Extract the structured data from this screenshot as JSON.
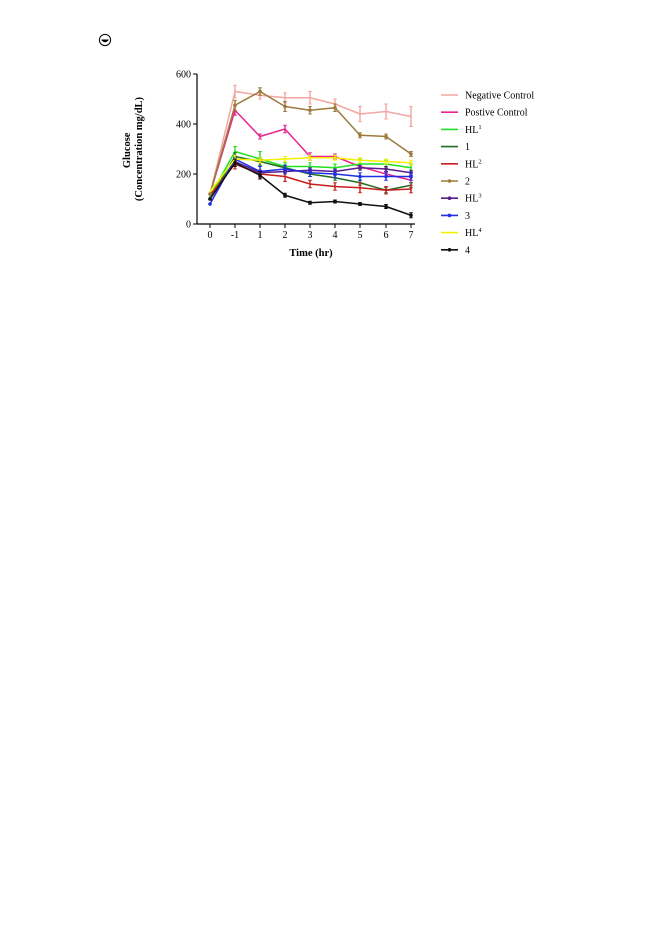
{
  "page": {
    "icon": "circled-dot-icon"
  },
  "chart_data": {
    "type": "line",
    "title": "",
    "xlabel": "Time (hr)",
    "ylabel_lines": [
      "Glucose",
      "(Concentration mg/dL)"
    ],
    "categories": [
      "0",
      "-1",
      "1",
      "2",
      "3",
      "4",
      "5",
      "6",
      "7"
    ],
    "ylim": [
      0,
      600
    ],
    "yticks": [
      0,
      200,
      400,
      600
    ],
    "legend_position": "right",
    "grid": false,
    "series": [
      {
        "name": "Negative Control",
        "base": "Negative Control",
        "sup": "",
        "color": "#f4a6a0",
        "marker": "none",
        "values": [
          120,
          530,
          515,
          505,
          505,
          480,
          440,
          450,
          430
        ],
        "errors": [
          0,
          25,
          15,
          20,
          25,
          20,
          30,
          30,
          40
        ]
      },
      {
        "name": "Postive Control",
        "base": "Postive Control",
        "sup": "",
        "color": "#e8268e",
        "marker": "none",
        "values": [
          120,
          455,
          350,
          380,
          270,
          270,
          230,
          200,
          175
        ],
        "errors": [
          0,
          20,
          10,
          15,
          15,
          10,
          10,
          10,
          10
        ]
      },
      {
        "name": "HL1",
        "base": "HL",
        "sup": "1",
        "color": "#22e022",
        "marker": "none",
        "values": [
          110,
          290,
          260,
          230,
          230,
          225,
          240,
          240,
          225
        ],
        "errors": [
          0,
          20,
          30,
          15,
          15,
          15,
          20,
          15,
          15
        ]
      },
      {
        "name": "1",
        "base": "1",
        "sup": "",
        "color": "#226b22",
        "marker": "none",
        "values": [
          100,
          270,
          250,
          225,
          200,
          185,
          165,
          135,
          155
        ],
        "errors": [
          0,
          15,
          15,
          10,
          10,
          10,
          10,
          10,
          10
        ]
      },
      {
        "name": "HL2",
        "base": "HL",
        "sup": "2",
        "color": "#c81e1e",
        "marker": "none",
        "values": [
          115,
          240,
          200,
          190,
          160,
          150,
          145,
          135,
          140
        ],
        "errors": [
          0,
          20,
          15,
          20,
          15,
          15,
          20,
          15,
          15
        ]
      },
      {
        "name": "2",
        "base": "2",
        "sup": "",
        "color": "#9c7a3c",
        "marker": "dot",
        "values": [
          120,
          475,
          530,
          470,
          455,
          465,
          355,
          350,
          280
        ],
        "errors": [
          0,
          20,
          15,
          20,
          15,
          15,
          10,
          10,
          10
        ]
      },
      {
        "name": "HL3",
        "base": "HL",
        "sup": "3",
        "color": "#5a1e8c",
        "marker": "dot",
        "values": [
          100,
          250,
          205,
          210,
          215,
          210,
          225,
          220,
          205
        ],
        "errors": [
          0,
          15,
          10,
          10,
          10,
          10,
          10,
          10,
          10
        ]
      },
      {
        "name": "3",
        "base": "3",
        "sup": "",
        "color": "#1e2ee0",
        "marker": "dot",
        "values": [
          80,
          260,
          210,
          220,
          205,
          200,
          190,
          190,
          190
        ],
        "errors": [
          0,
          15,
          20,
          15,
          15,
          15,
          15,
          15,
          15
        ]
      },
      {
        "name": "HL4",
        "base": "HL",
        "sup": "4",
        "color": "#f5f000",
        "marker": "none",
        "values": [
          130,
          260,
          255,
          260,
          265,
          265,
          255,
          250,
          245
        ],
        "errors": [
          0,
          15,
          10,
          10,
          10,
          10,
          10,
          10,
          10
        ]
      },
      {
        "name": "4",
        "base": "4",
        "sup": "",
        "color": "#111111",
        "marker": "dot",
        "values": [
          100,
          245,
          195,
          115,
          85,
          90,
          80,
          70,
          35
        ],
        "errors": [
          0,
          15,
          15,
          8,
          6,
          6,
          6,
          8,
          10
        ]
      }
    ]
  }
}
